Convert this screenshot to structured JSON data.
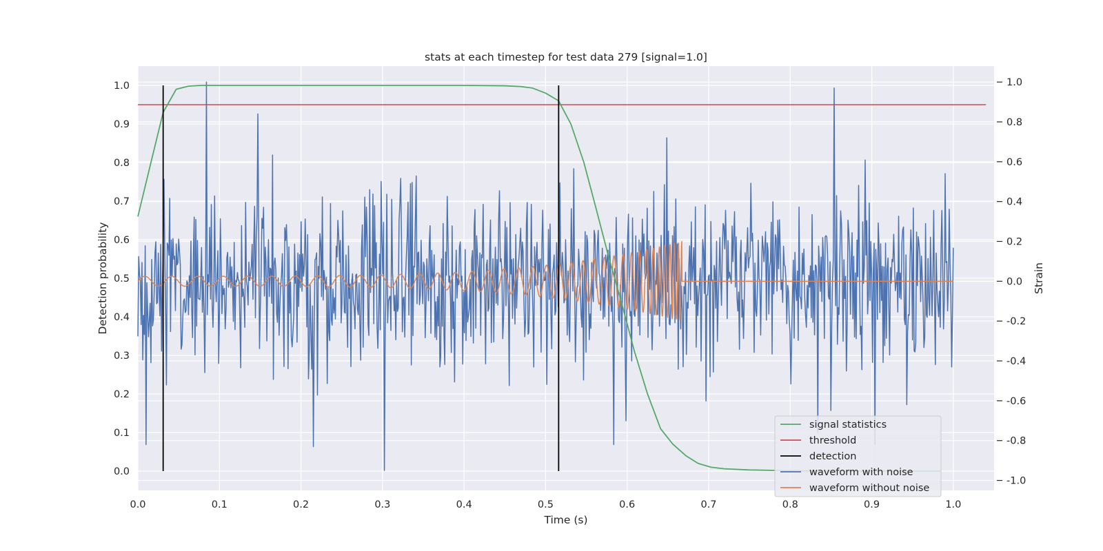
{
  "chart_data": {
    "type": "line",
    "title": "stats at each timestep for test data 279 [signal=1.0]",
    "xlabel": "Time (s)",
    "ylabel_left": "Detection probability",
    "ylabel_right": "Strain",
    "xlim": [
      0.0,
      1.05
    ],
    "ylim_left": [
      -0.05,
      1.05
    ],
    "ylim_right": [
      -1.05,
      1.08
    ],
    "x_ticks": [
      "0.0",
      "0.1",
      "0.2",
      "0.3",
      "0.4",
      "0.5",
      "0.6",
      "0.7",
      "0.8",
      "0.9",
      "1.0"
    ],
    "y_ticks_left": [
      "0.0",
      "0.1",
      "0.2",
      "0.3",
      "0.4",
      "0.5",
      "0.6",
      "0.7",
      "0.8",
      "0.9",
      "1.0"
    ],
    "y_ticks_right": [
      "-1.0",
      "-0.8",
      "-0.6",
      "-0.4",
      "-0.2",
      "0.0",
      "0.2",
      "0.4",
      "0.6",
      "0.8",
      "1.0"
    ],
    "grid": true,
    "legend_position": "lower-right",
    "legend": [
      {
        "label": "signal statistics",
        "color": "#55a868"
      },
      {
        "label": "threshold",
        "color": "#c44e52"
      },
      {
        "label": "detection",
        "color": "#000000"
      },
      {
        "label": "waveform with noise",
        "color": "#4c72b0"
      },
      {
        "label": "waveform without noise",
        "color": "#dd8452"
      }
    ],
    "series": [
      {
        "name": "signal statistics",
        "axis": "left",
        "color": "#55a868",
        "x": [
          0.0,
          0.016,
          0.031,
          0.047,
          0.062,
          0.078,
          0.094,
          0.2,
          0.3,
          0.4,
          0.45,
          0.47,
          0.484,
          0.5,
          0.516,
          0.531,
          0.547,
          0.562,
          0.578,
          0.594,
          0.609,
          0.625,
          0.641,
          0.656,
          0.672,
          0.687,
          0.703,
          0.719,
          0.75,
          0.8,
          0.85,
          0.9,
          0.95,
          0.984
        ],
        "y": [
          0.66,
          0.8,
          0.93,
          0.99,
          0.998,
          1.0,
          1.0,
          1.0,
          1.0,
          1.0,
          0.999,
          0.997,
          0.993,
          0.98,
          0.96,
          0.9,
          0.8,
          0.68,
          0.55,
          0.43,
          0.31,
          0.2,
          0.11,
          0.07,
          0.04,
          0.02,
          0.01,
          0.006,
          0.003,
          0.001,
          0.0,
          0.0,
          0.0,
          0.0
        ]
      },
      {
        "name": "threshold",
        "axis": "left",
        "color": "#c44e52",
        "x": [
          0.0,
          1.04
        ],
        "y": [
          0.95,
          0.95
        ]
      },
      {
        "name": "waveform with noise",
        "axis": "right",
        "color": "#4c72b0",
        "description": "noisy strain, 1000 samples, approx. range -0.95 to 0.98",
        "x_range": [
          0.0,
          1.0
        ],
        "amplitude_std": 0.22,
        "peaks": [
          {
            "x": 0.084,
            "y": 1.0
          },
          {
            "x": 0.854,
            "y": 0.97
          },
          {
            "x": 0.302,
            "y": -0.95
          },
          {
            "x": 0.215,
            "y": -0.83
          },
          {
            "x": 0.01,
            "y": -0.82
          },
          {
            "x": 0.584,
            "y": -0.82
          },
          {
            "x": 0.904,
            "y": -0.82
          },
          {
            "x": 0.147,
            "y": 0.84
          },
          {
            "x": 0.649,
            "y": 0.72
          }
        ]
      },
      {
        "name": "waveform without noise",
        "axis": "right",
        "color": "#dd8452",
        "description": "chirp with growing frequency/amplitude, merger near t=0.667, zero afterwards",
        "x_range": [
          0.0,
          1.0
        ],
        "merger_time": 0.667,
        "start_amplitude": 0.025,
        "merger_amplitude": 0.2
      }
    ],
    "detections": [
      0.031,
      0.516
    ]
  }
}
